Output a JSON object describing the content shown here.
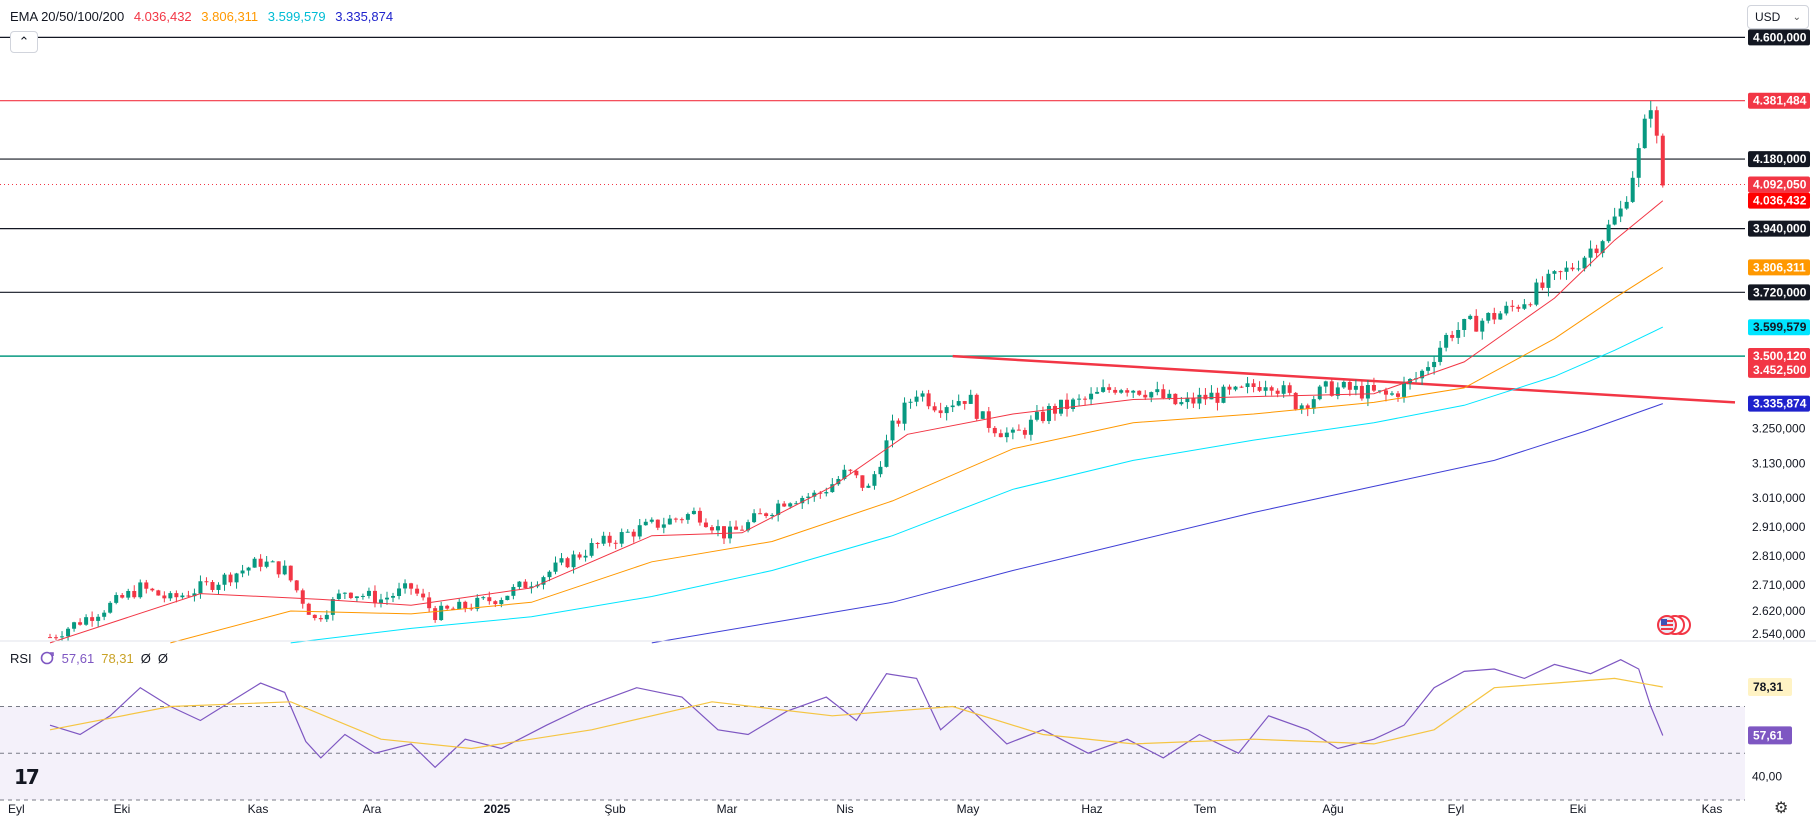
{
  "legend": {
    "title": "EMA 20/50/100/200",
    "values": [
      "4.036,432",
      "3.806,311",
      "3.599,579",
      "3.335,874"
    ]
  },
  "rsi_legend": {
    "title": "RSI",
    "v1": "57,61",
    "v2": "78,31",
    "v3": "Ø",
    "v4": "Ø"
  },
  "currency": "USD",
  "colors": {
    "up": "#089981",
    "down": "#f23645",
    "ema20": "#f23645",
    "ema50": "#ff9800",
    "ema100": "#00e5ff",
    "ema200": "#3f3fd6",
    "trend": "#f23645",
    "rsi": "#7e57c2",
    "rsi_ma": "#f5c542"
  },
  "icons": {
    "collapse": "chevron-up-icon",
    "currency_dropdown": "chevron-down-icon",
    "logo": "tradingview-logo-icon",
    "settings": "gear-icon",
    "flag": "us-flag-icon"
  },
  "chart_data": [
    {
      "type": "candlestick",
      "x_tick_labels": [
        "Eyl",
        "Eki",
        "Kas",
        "Ara",
        "2025",
        "Şub",
        "Mar",
        "Nis",
        "May",
        "Haz",
        "Tem",
        "Ağu",
        "Eyl",
        "Eki",
        "Kas"
      ],
      "y_axis_labels": [
        "3.250,000",
        "3.130,000",
        "3.010,000",
        "2.910,000",
        "2.810,000",
        "2.710,000",
        "2.620,000",
        "2.540,000"
      ],
      "ylim": [
        2520,
        4660
      ],
      "last_price": "4.092,050",
      "close_series": [
        {
          "i": 0,
          "y": 2530
        },
        {
          "i": 20,
          "y": 2640
        },
        {
          "i": 30,
          "y": 2700
        },
        {
          "i": 40,
          "y": 2660
        },
        {
          "i": 55,
          "y": 2720
        },
        {
          "i": 70,
          "y": 2790
        },
        {
          "i": 78,
          "y": 2760
        },
        {
          "i": 88,
          "y": 2590
        },
        {
          "i": 98,
          "y": 2690
        },
        {
          "i": 110,
          "y": 2660
        },
        {
          "i": 120,
          "y": 2700
        },
        {
          "i": 128,
          "y": 2610
        },
        {
          "i": 140,
          "y": 2640
        },
        {
          "i": 150,
          "y": 2670
        },
        {
          "i": 165,
          "y": 2750
        },
        {
          "i": 180,
          "y": 2840
        },
        {
          "i": 195,
          "y": 2900
        },
        {
          "i": 205,
          "y": 2930
        },
        {
          "i": 215,
          "y": 2960
        },
        {
          "i": 225,
          "y": 2880
        },
        {
          "i": 232,
          "y": 2920
        },
        {
          "i": 245,
          "y": 3010
        },
        {
          "i": 255,
          "y": 3020
        },
        {
          "i": 265,
          "y": 3100
        },
        {
          "i": 272,
          "y": 3040
        },
        {
          "i": 280,
          "y": 3250
        },
        {
          "i": 288,
          "y": 3380
        },
        {
          "i": 295,
          "y": 3330
        },
        {
          "i": 305,
          "y": 3360
        },
        {
          "i": 310,
          "y": 3280
        },
        {
          "i": 320,
          "y": 3220
        },
        {
          "i": 332,
          "y": 3310
        },
        {
          "i": 345,
          "y": 3350
        },
        {
          "i": 355,
          "y": 3400
        },
        {
          "i": 365,
          "y": 3380
        },
        {
          "i": 375,
          "y": 3330
        },
        {
          "i": 385,
          "y": 3360
        },
        {
          "i": 395,
          "y": 3370
        },
        {
          "i": 405,
          "y": 3420
        },
        {
          "i": 415,
          "y": 3330
        },
        {
          "i": 425,
          "y": 3390
        },
        {
          "i": 435,
          "y": 3380
        },
        {
          "i": 445,
          "y": 3360
        },
        {
          "i": 455,
          "y": 3430
        },
        {
          "i": 465,
          "y": 3580
        },
        {
          "i": 475,
          "y": 3620
        },
        {
          "i": 485,
          "y": 3660
        },
        {
          "i": 495,
          "y": 3730
        },
        {
          "i": 505,
          "y": 3800
        },
        {
          "i": 515,
          "y": 3900
        },
        {
          "i": 522,
          "y": 4000
        },
        {
          "i": 528,
          "y": 4200
        },
        {
          "i": 532,
          "y": 4380
        },
        {
          "i": 536,
          "y": 4092
        }
      ],
      "ema_points": [
        {
          "name": "EMA 20",
          "points": [
            [
              0,
              2510
            ],
            [
              50,
              2680
            ],
            [
              90,
              2660
            ],
            [
              120,
              2640
            ],
            [
              160,
              2700
            ],
            [
              200,
              2880
            ],
            [
              230,
              2890
            ],
            [
              260,
              3050
            ],
            [
              285,
              3230
            ],
            [
              320,
              3300
            ],
            [
              360,
              3350
            ],
            [
              400,
              3360
            ],
            [
              440,
              3370
            ],
            [
              470,
              3480
            ],
            [
              500,
              3700
            ],
            [
              520,
              3900
            ],
            [
              536,
              4036
            ]
          ]
        },
        {
          "name": "EMA 50",
          "points": [
            [
              40,
              2510
            ],
            [
              80,
              2620
            ],
            [
              120,
              2610
            ],
            [
              160,
              2650
            ],
            [
              200,
              2790
            ],
            [
              240,
              2860
            ],
            [
              280,
              3000
            ],
            [
              320,
              3180
            ],
            [
              360,
              3270
            ],
            [
              400,
              3300
            ],
            [
              440,
              3340
            ],
            [
              470,
              3390
            ],
            [
              500,
              3560
            ],
            [
              520,
              3700
            ],
            [
              536,
              3806
            ]
          ]
        },
        {
          "name": "EMA 100",
          "points": [
            [
              80,
              2510
            ],
            [
              120,
              2560
            ],
            [
              160,
              2600
            ],
            [
              200,
              2670
            ],
            [
              240,
              2760
            ],
            [
              280,
              2880
            ],
            [
              320,
              3040
            ],
            [
              360,
              3140
            ],
            [
              400,
              3210
            ],
            [
              440,
              3270
            ],
            [
              470,
              3330
            ],
            [
              500,
              3430
            ],
            [
              520,
              3520
            ],
            [
              536,
              3600
            ]
          ]
        },
        {
          "name": "EMA 200",
          "points": [
            [
              200,
              2510
            ],
            [
              240,
              2580
            ],
            [
              280,
              2650
            ],
            [
              320,
              2760
            ],
            [
              360,
              2860
            ],
            [
              400,
              2960
            ],
            [
              440,
              3050
            ],
            [
              480,
              3140
            ],
            [
              510,
              3240
            ],
            [
              536,
              3336
            ]
          ]
        }
      ],
      "horizontal_levels": [
        {
          "label": "4.600,000",
          "value": 4600,
          "color": "#131722"
        },
        {
          "label": "4.381,484",
          "value": 4381.484,
          "color": "#f23645"
        },
        {
          "label": "4.180,000",
          "value": 4180,
          "color": "#131722"
        },
        {
          "label": "3.940,000",
          "value": 3940,
          "color": "#131722"
        },
        {
          "label": "3.720,000",
          "value": 3720,
          "color": "#131722"
        },
        {
          "label": "3.500,000",
          "value": 3500,
          "color": "#089981"
        }
      ],
      "price_tags": [
        {
          "label": "4.092,050",
          "value": 4092.05,
          "color": "#f23645"
        },
        {
          "label": "4.036,432",
          "value": 4036.432,
          "color": "#ff0000"
        },
        {
          "label": "3.806,311",
          "value": 3806.311,
          "color": "#ff9800"
        },
        {
          "label": "3.599,579",
          "value": 3599.579,
          "color": "#00e5ff"
        },
        {
          "label": "3.500,120",
          "value": 3500.12,
          "color": "#f23645"
        },
        {
          "label": "3.452,500",
          "value": 3452.5,
          "color": "#f23645"
        },
        {
          "label": "3.335,874",
          "value": 3335.874,
          "color": "#1e22cc"
        }
      ],
      "trend_line": {
        "from": [
          300,
          3500
        ],
        "to": [
          560,
          3340
        ]
      }
    },
    {
      "type": "line",
      "title": "RSI",
      "y_axis_labels": [
        "40,00"
      ],
      "ylim": [
        30,
        92
      ],
      "bands": [
        70,
        50
      ],
      "rsi_tag": "57,61",
      "rsi_ma_tag": "78,31",
      "rsi_series": [
        [
          0,
          62
        ],
        [
          10,
          58
        ],
        [
          20,
          66
        ],
        [
          30,
          78
        ],
        [
          40,
          70
        ],
        [
          50,
          64
        ],
        [
          60,
          72
        ],
        [
          70,
          80
        ],
        [
          78,
          76
        ],
        [
          85,
          55
        ],
        [
          90,
          48
        ],
        [
          98,
          58
        ],
        [
          108,
          50
        ],
        [
          120,
          54
        ],
        [
          128,
          44
        ],
        [
          138,
          56
        ],
        [
          150,
          52
        ],
        [
          165,
          62
        ],
        [
          178,
          70
        ],
        [
          195,
          78
        ],
        [
          210,
          74
        ],
        [
          222,
          60
        ],
        [
          232,
          58
        ],
        [
          245,
          68
        ],
        [
          258,
          74
        ],
        [
          268,
          64
        ],
        [
          278,
          84
        ],
        [
          288,
          82
        ],
        [
          296,
          60
        ],
        [
          305,
          70
        ],
        [
          318,
          54
        ],
        [
          330,
          60
        ],
        [
          345,
          50
        ],
        [
          358,
          56
        ],
        [
          370,
          48
        ],
        [
          382,
          58
        ],
        [
          395,
          50
        ],
        [
          405,
          66
        ],
        [
          418,
          60
        ],
        [
          428,
          52
        ],
        [
          440,
          56
        ],
        [
          450,
          62
        ],
        [
          460,
          78
        ],
        [
          470,
          85
        ],
        [
          480,
          86
        ],
        [
          490,
          82
        ],
        [
          500,
          88
        ],
        [
          512,
          84
        ],
        [
          522,
          90
        ],
        [
          528,
          86
        ],
        [
          532,
          70
        ],
        [
          536,
          57.6
        ]
      ],
      "rsi_ma_series": [
        [
          0,
          60
        ],
        [
          40,
          70
        ],
        [
          80,
          72
        ],
        [
          110,
          56
        ],
        [
          140,
          52
        ],
        [
          180,
          60
        ],
        [
          220,
          72
        ],
        [
          260,
          66
        ],
        [
          300,
          70
        ],
        [
          330,
          58
        ],
        [
          360,
          54
        ],
        [
          400,
          56
        ],
        [
          440,
          54
        ],
        [
          460,
          60
        ],
        [
          480,
          78
        ],
        [
          500,
          80
        ],
        [
          520,
          82
        ],
        [
          536,
          78.3
        ]
      ]
    }
  ]
}
